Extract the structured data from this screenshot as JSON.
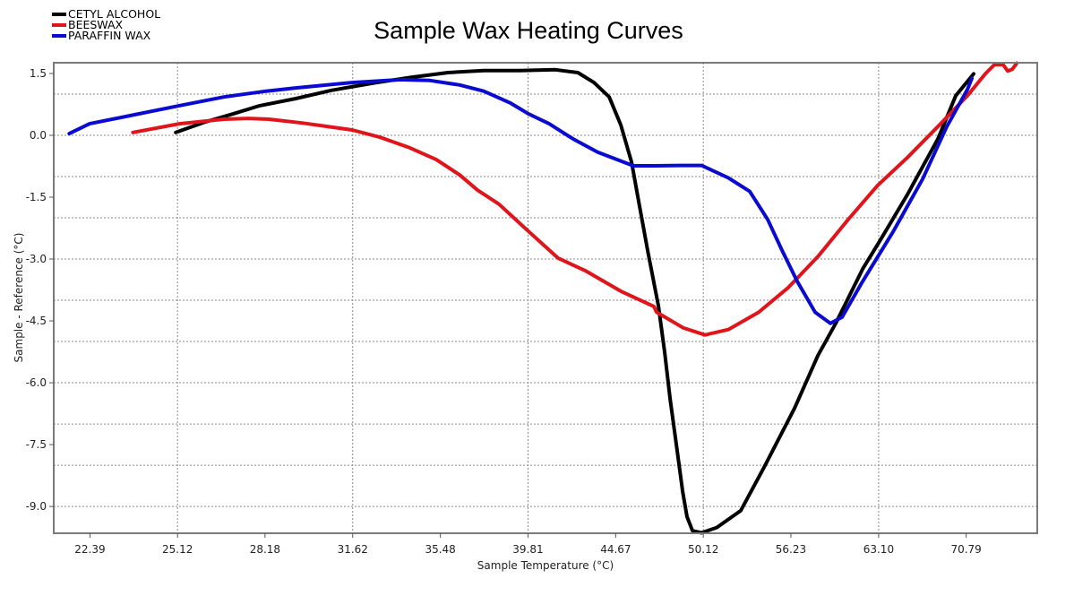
{
  "chart_data": {
    "type": "line",
    "title": "Sample Wax Heating Curves",
    "xlabel": "Sample Temperature (°C)",
    "ylabel": "Sample - Reference (°C)",
    "x_scale": "log",
    "xlim": [
      21.35,
      77.72
    ],
    "ylim": [
      -9.65,
      1.76
    ],
    "x_ticks": [
      "22.39",
      "25.12",
      "28.18",
      "31.62",
      "35.48",
      "39.81",
      "44.67",
      "50.12",
      "56.23",
      "63.10",
      "70.79"
    ],
    "x_gridlines": [
      25.12,
      31.62,
      39.81,
      50.12,
      63.1
    ],
    "y_ticks": [
      "1.5",
      "0.0",
      "-1.5",
      "-3.0",
      "-4.5",
      "-6.0",
      "-7.5",
      "-9.0"
    ],
    "y_gridlines": [
      1,
      0,
      -1,
      -2,
      -3,
      -4,
      -5,
      -6,
      -7,
      -8,
      -9
    ],
    "grid": true,
    "legend_position": "top-left",
    "series": [
      {
        "name": "CETYL ALCOHOL",
        "color": "#000000",
        "x": [
          25.06,
          26.08,
          27.02,
          27.99,
          29.34,
          30.75,
          32.62,
          34.19,
          35.84,
          37.56,
          39.37,
          41.27,
          42.5,
          43.41,
          44.29,
          44.97,
          45.61,
          46.04,
          46.59,
          47.25,
          47.64,
          47.98,
          48.38,
          48.78,
          49.06,
          49.41,
          50.0,
          51.01,
          52.65,
          54.28,
          56.5,
          58.26,
          59.64,
          61.79,
          63.18,
          65.53,
          68.2,
          69.83,
          71.49
        ],
        "y": [
          0.07,
          0.33,
          0.52,
          0.72,
          0.89,
          1.09,
          1.28,
          1.41,
          1.52,
          1.57,
          1.57,
          1.59,
          1.52,
          1.28,
          0.93,
          0.25,
          -0.65,
          -1.6,
          -2.8,
          -4.14,
          -5.27,
          -6.39,
          -7.52,
          -8.65,
          -9.25,
          -9.59,
          -9.64,
          -9.51,
          -9.1,
          -8.05,
          -6.62,
          -5.34,
          -4.56,
          -3.24,
          -2.57,
          -1.44,
          -0.09,
          0.96,
          1.49
        ]
      },
      {
        "name": "BEESWAX",
        "color": "#e0151b",
        "x": [
          23.69,
          25.18,
          26.7,
          27.57,
          28.32,
          29.58,
          31.6,
          32.73,
          34.07,
          35.29,
          36.39,
          37.26,
          38.32,
          39.84,
          41.42,
          42.91,
          44.97,
          46.97,
          47.14,
          48.83,
          50.23,
          51.79,
          53.9,
          56.04,
          58.26,
          60.63,
          63.03,
          65.53,
          68.2,
          70.9,
          72.59,
          73.45,
          74.32,
          74.76,
          75.2,
          75.65
        ],
        "y": [
          0.07,
          0.28,
          0.39,
          0.41,
          0.39,
          0.3,
          0.13,
          -0.04,
          -0.3,
          -0.59,
          -0.96,
          -1.33,
          -1.67,
          -2.33,
          -2.98,
          -3.28,
          -3.78,
          -4.15,
          -4.29,
          -4.67,
          -4.84,
          -4.71,
          -4.29,
          -3.69,
          -2.94,
          -2.04,
          -1.21,
          -0.54,
          0.21,
          0.96,
          1.49,
          1.71,
          1.71,
          1.56,
          1.6,
          1.75
        ]
      },
      {
        "name": "PARAFFIN WAX",
        "color": "#0a0ad0",
        "x": [
          21.79,
          22.38,
          23.74,
          25.18,
          26.7,
          28.22,
          29.34,
          31.6,
          33.67,
          35.0,
          36.39,
          37.56,
          38.91,
          39.84,
          40.93,
          42.25,
          43.62,
          45.72,
          46.97,
          48.66,
          50.0,
          51.79,
          53.27,
          54.54,
          55.58,
          56.7,
          58.05,
          59.22,
          60.14,
          61.79,
          64.31,
          66.85,
          69.01,
          70.9,
          71.32
        ],
        "y": [
          0.04,
          0.28,
          0.5,
          0.72,
          0.93,
          1.07,
          1.15,
          1.28,
          1.35,
          1.33,
          1.22,
          1.07,
          0.78,
          0.52,
          0.28,
          -0.09,
          -0.41,
          -0.74,
          -0.74,
          -0.73,
          -0.73,
          -1.03,
          -1.36,
          -2.04,
          -2.79,
          -3.54,
          -4.29,
          -4.56,
          -4.41,
          -3.54,
          -2.34,
          -1.06,
          0.21,
          1.11,
          1.38
        ]
      }
    ]
  }
}
